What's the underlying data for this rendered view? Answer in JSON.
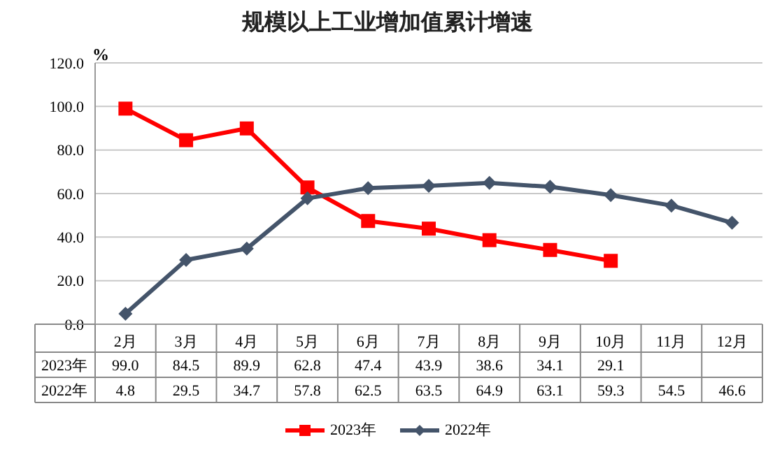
{
  "chart_data": {
    "type": "line",
    "title": "规模以上工业增加值累计增速",
    "ylabel": "%",
    "categories": [
      "2月",
      "3月",
      "4月",
      "5月",
      "6月",
      "7月",
      "8月",
      "9月",
      "10月",
      "11月",
      "12月"
    ],
    "series": [
      {
        "name": "2023年",
        "color": "#ff0000",
        "marker": "square",
        "values": [
          99.0,
          84.5,
          89.9,
          62.8,
          47.4,
          43.9,
          38.6,
          34.1,
          29.1,
          null,
          null
        ],
        "value_labels": [
          "99.0",
          "84.5",
          "89.9",
          "62.8",
          "47.4",
          "43.9",
          "38.6",
          "34.1",
          "29.1",
          null,
          null
        ]
      },
      {
        "name": "2022年",
        "color": "#44546a",
        "marker": "diamond",
        "values": [
          4.8,
          29.5,
          34.7,
          57.8,
          62.5,
          63.5,
          64.9,
          63.1,
          59.3,
          54.5,
          46.6
        ],
        "value_labels": [
          "4.8",
          "29.5",
          "34.7",
          "57.8",
          "62.5",
          "63.5",
          "64.9",
          "63.1",
          "59.3",
          "54.5",
          "46.6"
        ]
      }
    ],
    "ylim": [
      0,
      120
    ],
    "yticks": [
      {
        "value": 0,
        "label": "0.0"
      },
      {
        "value": 20,
        "label": "20.0"
      },
      {
        "value": 40,
        "label": "40.0"
      },
      {
        "value": 60,
        "label": "60.0"
      },
      {
        "value": 80,
        "label": "80.0"
      },
      {
        "value": 100,
        "label": "100.0"
      },
      {
        "value": 120,
        "label": "120.0"
      }
    ],
    "grid": "y",
    "legend": "bottom"
  }
}
